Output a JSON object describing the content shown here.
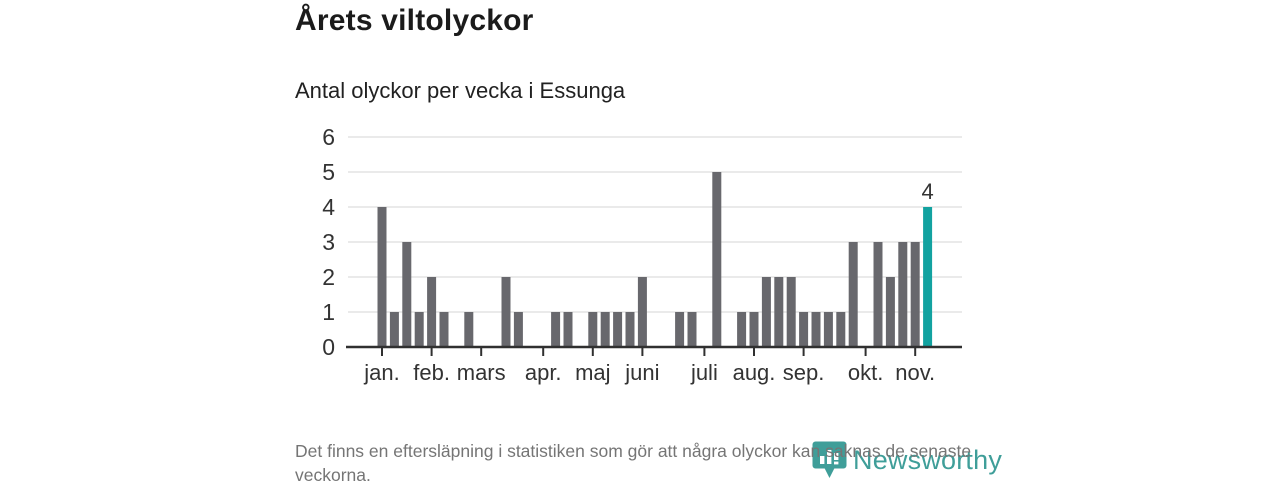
{
  "title": "Årets viltolyckor",
  "subtitle": "Antal olyckor per vecka i Essunga",
  "footnote": "Det finns en eftersläpning i statistiken som gör att några olyckor kan saknas de senaste veckorna.",
  "logo": {
    "text": "Newsworthy",
    "icon": "newsworthy-pin-barchart-icon",
    "color": "#3f9e99"
  },
  "colors": {
    "bar": "#68686d",
    "highlight": "#12a2a0",
    "axis": "#303030",
    "grid": "#e4e4e4",
    "tick_text": "#333333",
    "label_text": "#1b1b1b",
    "footnote_text": "#757575"
  },
  "chart_data": {
    "type": "bar",
    "title": "Årets viltolyckor",
    "subtitle": "Antal olyckor per vecka i Essunga",
    "xlabel": "",
    "ylabel": "",
    "x_unit": "week",
    "values": [
      4,
      1,
      3,
      1,
      2,
      1,
      0,
      1,
      0,
      0,
      2,
      1,
      0,
      0,
      1,
      1,
      0,
      1,
      1,
      1,
      1,
      2,
      0,
      0,
      1,
      1,
      0,
      5,
      0,
      1,
      1,
      2,
      2,
      2,
      1,
      1,
      1,
      1,
      3,
      0,
      3,
      2,
      3,
      3,
      4
    ],
    "highlight_index": 44,
    "highlight_label": "4",
    "highlight_value": 4,
    "y_ticks": [
      0,
      1,
      2,
      3,
      4,
      5,
      6
    ],
    "ylim": [
      0,
      6
    ],
    "grid": true,
    "legend": false,
    "month_ticks": [
      {
        "index": 0,
        "label": "jan."
      },
      {
        "index": 4,
        "label": "feb."
      },
      {
        "index": 8,
        "label": "mars"
      },
      {
        "index": 13,
        "label": "apr."
      },
      {
        "index": 17,
        "label": "maj"
      },
      {
        "index": 21,
        "label": "juni"
      },
      {
        "index": 26,
        "label": "juli"
      },
      {
        "index": 30,
        "label": "aug."
      },
      {
        "index": 34,
        "label": "sep."
      },
      {
        "index": 39,
        "label": "okt."
      },
      {
        "index": 43,
        "label": "nov."
      }
    ]
  }
}
